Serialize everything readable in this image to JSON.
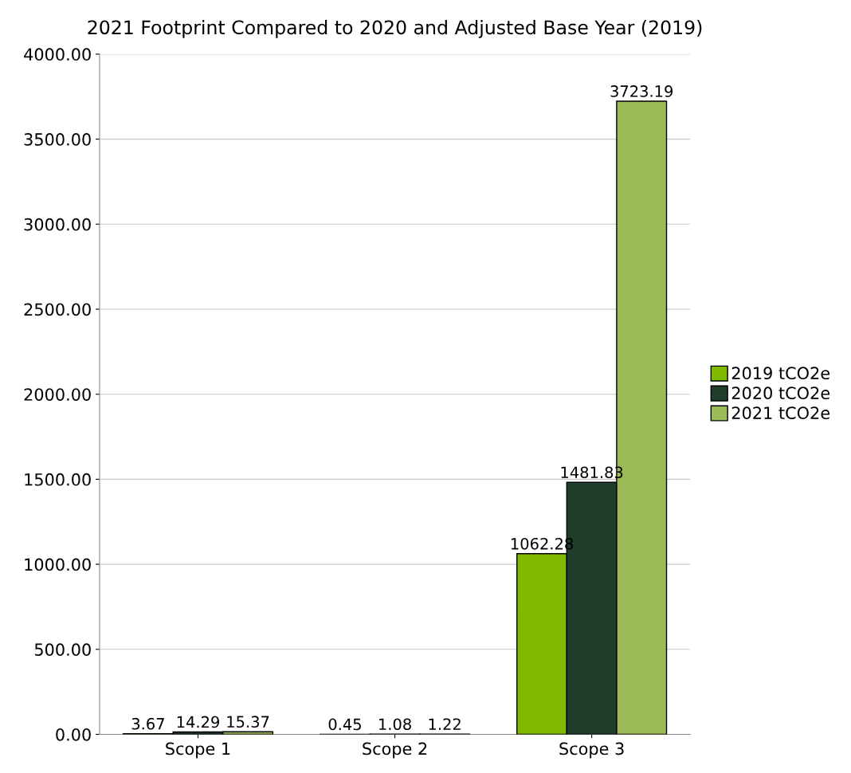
{
  "chart_data": {
    "type": "bar",
    "title": "2021 Footprint Compared to 2020 and Adjusted Base Year (2019)",
    "categories": [
      "Scope 1",
      "Scope 2",
      "Scope 3"
    ],
    "series": [
      {
        "name": "2019 tCO2e",
        "color": "#7fba00",
        "values": [
          3.67,
          0.45,
          1062.28
        ]
      },
      {
        "name": "2020 tCO2e",
        "color": "#1f3d2b",
        "values": [
          14.29,
          1.08,
          1481.83
        ]
      },
      {
        "name": "2021 tCO2e",
        "color": "#9bbb59",
        "values": [
          15.37,
          1.22,
          3723.19
        ]
      }
    ],
    "ylim": [
      0,
      4000
    ],
    "yticks": [
      {
        "value": 0,
        "label": "0.00"
      },
      {
        "value": 500,
        "label": "500.00"
      },
      {
        "value": 1000,
        "label": "1000.00"
      },
      {
        "value": 1500,
        "label": "1500.00"
      },
      {
        "value": 2000,
        "label": "2000.00"
      },
      {
        "value": 2500,
        "label": "2500.00"
      },
      {
        "value": 3000,
        "label": "3000.00"
      },
      {
        "value": 3500,
        "label": "3500.00"
      },
      {
        "value": 4000,
        "label": "4000.00"
      }
    ],
    "grid": "y",
    "legend": "right",
    "data_labels": true
  }
}
